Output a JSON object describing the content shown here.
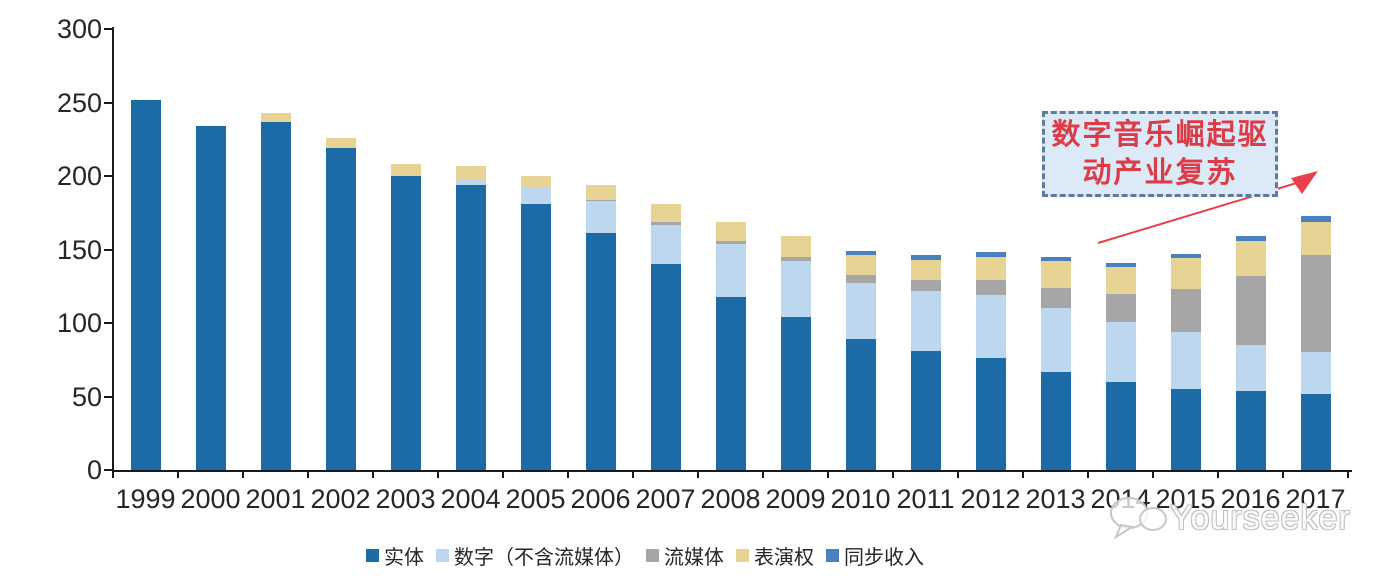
{
  "chart_data": {
    "type": "bar",
    "stacked": true,
    "title": "",
    "categories": [
      "1999",
      "2000",
      "2001",
      "2002",
      "2003",
      "2004",
      "2005",
      "2006",
      "2007",
      "2008",
      "2009",
      "2010",
      "2011",
      "2012",
      "2013",
      "2014",
      "2015",
      "2016",
      "2017"
    ],
    "series": [
      {
        "key": "physical",
        "name": "实体",
        "color": "#1C6BA6",
        "values": [
          252,
          234,
          237,
          219,
          200,
          194,
          181,
          161,
          140,
          118,
          104,
          89,
          81,
          76,
          67,
          60,
          55,
          54,
          52
        ]
      },
      {
        "key": "digital-excl-streaming",
        "name": "数字（不含流媒体）",
        "color": "#BDD7EE",
        "values": [
          0,
          0,
          0,
          0,
          0,
          4,
          11,
          22,
          27,
          36,
          38,
          38,
          41,
          43,
          43,
          41,
          39,
          31,
          28
        ]
      },
      {
        "key": "streaming",
        "name": "流媒体",
        "color": "#A6A6A6",
        "values": [
          0,
          0,
          0,
          0,
          0,
          0,
          0,
          1,
          2,
          2,
          3,
          6,
          7,
          10,
          14,
          19,
          29,
          47,
          66
        ]
      },
      {
        "key": "performance-rights",
        "name": "表演权",
        "color": "#E7D494",
        "values": [
          0,
          0,
          6,
          7,
          8,
          9,
          8,
          10,
          12,
          13,
          14,
          13,
          14,
          16,
          18,
          18,
          21,
          24,
          23
        ]
      },
      {
        "key": "sync",
        "name": "同步收入",
        "color": "#4A80BD",
        "values": [
          0,
          0,
          0,
          0,
          0,
          0,
          0,
          0,
          0,
          0,
          0,
          3,
          3,
          3,
          3,
          3,
          3,
          3,
          4
        ]
      }
    ],
    "ylim": [
      0,
      300
    ],
    "yticks": [
      0,
      50,
      100,
      150,
      200,
      250,
      300
    ],
    "xlabel": "",
    "ylabel": "",
    "grid": false,
    "legend_position": "bottom"
  },
  "annotation": {
    "line1": "数字音乐崛起驱",
    "line2": "动产业复苏",
    "text_color": "#DC3C48",
    "border_color": "#5E7CA0",
    "fill_color": "#DCE9F7",
    "arrow_color": "#E8414B"
  },
  "watermark": {
    "text": "Yourseeker",
    "logo": "speech-bubbles-icon"
  }
}
